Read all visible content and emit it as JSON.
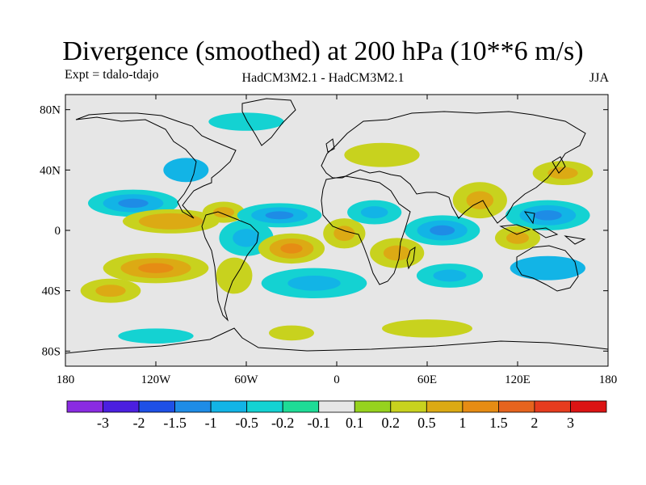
{
  "title": "Divergence (smoothed) at 200 hPa (10**6 m/s)",
  "expt": "Expt = tdalo-tdajo",
  "models": "HadCM3M2.1 - HadCM3M2.1",
  "season": "JJA",
  "lat_labels": [
    "80N",
    "40N",
    "0",
    "40S",
    "80S"
  ],
  "lat_values": [
    80,
    40,
    0,
    -40,
    -80
  ],
  "lon_labels": [
    "180",
    "120W",
    "60W",
    "0",
    "60E",
    "120E",
    "180"
  ],
  "lon_values": [
    -180,
    -120,
    -60,
    0,
    60,
    120,
    180
  ],
  "colorbar": {
    "colors": [
      "#8a2be2",
      "#4b1fe0",
      "#1e50e6",
      "#1e8ce6",
      "#12b4e6",
      "#14d2d2",
      "#1edc96",
      "#e6e6e6",
      "#96d21e",
      "#c8d21e",
      "#dcaa14",
      "#e68c14",
      "#e6641e",
      "#e63c1e",
      "#dc1414"
    ],
    "labels": [
      "-3",
      "-2",
      "-1.5",
      "-1",
      "-0.5",
      "-0.2",
      "-0.1",
      "0.1",
      "0.2",
      "0.5",
      "1",
      "1.5",
      "2",
      "3"
    ]
  },
  "chart_data": {
    "type": "map",
    "variable": "Divergence (smoothed) at 200 hPa",
    "units": "10**6 m/s",
    "season": "JJA",
    "lat_range": [
      -90,
      90
    ],
    "lon_range": [
      -180,
      180
    ],
    "levels": [
      -3,
      -2,
      -1.5,
      -1,
      -0.5,
      -0.2,
      -0.1,
      0.1,
      0.2,
      0.5,
      1,
      1.5,
      2,
      3
    ],
    "features": [
      {
        "name": "n-pacific-neg",
        "lon": -135,
        "lat": 18,
        "rlon": 30,
        "rlat": 9,
        "value": -1.2
      },
      {
        "name": "e-pacific-pos",
        "lon": -110,
        "lat": 6,
        "rlon": 32,
        "rlat": 8,
        "value": 1.0
      },
      {
        "name": "s-pacific-pos",
        "lon": -120,
        "lat": -25,
        "rlon": 35,
        "rlat": 10,
        "value": 1.1
      },
      {
        "name": "se-pacific-pos",
        "lon": -150,
        "lat": -40,
        "rlon": 20,
        "rlat": 8,
        "value": 0.6
      },
      {
        "name": "caribbean-pos",
        "lon": -75,
        "lat": 12,
        "rlon": 14,
        "rlat": 7,
        "value": 0.7
      },
      {
        "name": "amazon-neg",
        "lon": -60,
        "lat": -5,
        "rlon": 18,
        "rlat": 12,
        "value": -0.8
      },
      {
        "name": "s-america-pos",
        "lon": -68,
        "lat": -30,
        "rlon": 12,
        "rlat": 12,
        "value": 0.5
      },
      {
        "name": "trop-atlantic-neg",
        "lon": -38,
        "lat": 10,
        "rlon": 28,
        "rlat": 8,
        "value": -1.0
      },
      {
        "name": "sw-atlantic-pos",
        "lon": -30,
        "lat": -12,
        "rlon": 22,
        "rlat": 10,
        "value": 1.2
      },
      {
        "name": "s-atlantic-neg",
        "lon": -15,
        "lat": -35,
        "rlon": 35,
        "rlat": 10,
        "value": -0.6
      },
      {
        "name": "w-africa-pos",
        "lon": 5,
        "lat": -2,
        "rlon": 14,
        "rlat": 10,
        "value": 0.6
      },
      {
        "name": "africa-neg",
        "lon": 25,
        "lat": 12,
        "rlon": 18,
        "rlat": 8,
        "value": -0.6
      },
      {
        "name": "indian-neg",
        "lon": 70,
        "lat": 0,
        "rlon": 25,
        "rlat": 10,
        "value": -1.1
      },
      {
        "name": "s-indian-pos",
        "lon": 40,
        "lat": -15,
        "rlon": 18,
        "rlat": 10,
        "value": 0.8
      },
      {
        "name": "s-indian-neg",
        "lon": 75,
        "lat": -30,
        "rlon": 22,
        "rlat": 8,
        "value": -0.6
      },
      {
        "name": "asia-pos",
        "lon": 95,
        "lat": 20,
        "rlon": 18,
        "rlat": 12,
        "value": 0.8
      },
      {
        "name": "w-pacific-neg",
        "lon": 140,
        "lat": 10,
        "rlon": 28,
        "rlat": 10,
        "value": -1.0
      },
      {
        "name": "indonesia-pos",
        "lon": 120,
        "lat": -5,
        "rlon": 15,
        "rlat": 8,
        "value": 0.8
      },
      {
        "name": "nw-pacific-pos",
        "lon": 150,
        "lat": 38,
        "rlon": 20,
        "rlat": 8,
        "value": 0.6
      },
      {
        "name": "australia-neg",
        "lon": 140,
        "lat": -25,
        "rlon": 25,
        "rlat": 8,
        "value": -0.5
      },
      {
        "name": "eurasia-pos",
        "lon": 30,
        "lat": 50,
        "rlon": 25,
        "rlat": 8,
        "value": 0.5
      },
      {
        "name": "arctic-neg",
        "lon": -60,
        "lat": 72,
        "rlon": 25,
        "rlat": 6,
        "value": -0.4
      },
      {
        "name": "s-ocean-pos",
        "lon": 60,
        "lat": -65,
        "rlon": 30,
        "rlat": 6,
        "value": 0.4
      },
      {
        "name": "s-ocean-pos2",
        "lon": -30,
        "lat": -68,
        "rlon": 15,
        "rlat": 5,
        "value": 0.4
      },
      {
        "name": "s-ocean-neg",
        "lon": -120,
        "lat": -70,
        "rlon": 25,
        "rlat": 5,
        "value": -0.4
      },
      {
        "name": "n-america-neg",
        "lon": -100,
        "lat": 40,
        "rlon": 15,
        "rlat": 8,
        "value": -0.5
      }
    ]
  }
}
